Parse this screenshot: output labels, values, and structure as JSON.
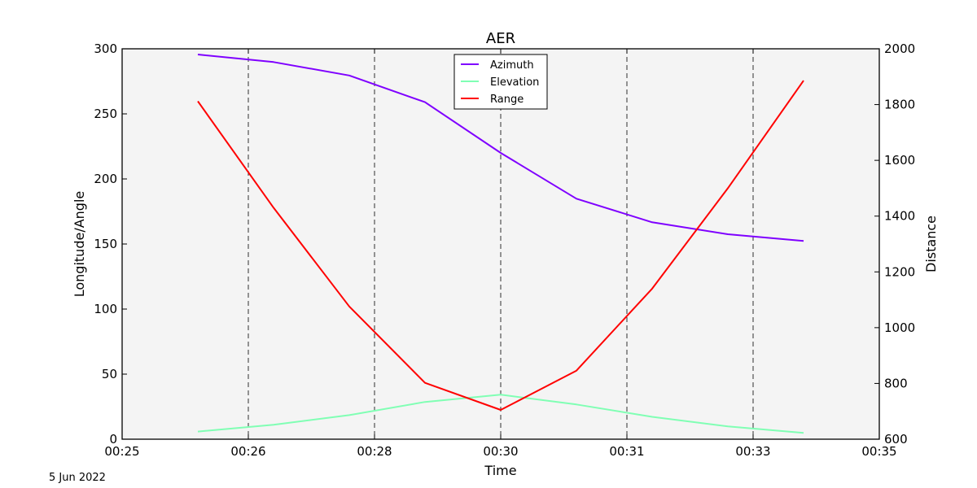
{
  "chart_data": {
    "type": "line",
    "title": "AER",
    "xlabel": "Time",
    "ylabel_left": "Longitude/Angle",
    "ylabel_right": "Distance",
    "date_label": "5 Jun 2022",
    "x_tick_labels": [
      "00:25",
      "00:26",
      "00:28",
      "00:30",
      "00:31",
      "00:33",
      "00:35"
    ],
    "x_ticks_at": [
      0,
      1,
      2,
      3,
      4,
      5,
      6
    ],
    "xlim": [
      0,
      6
    ],
    "ylim_left": [
      0,
      300
    ],
    "ylim_right": [
      600,
      2000
    ],
    "y_ticks_left": [
      0,
      50,
      100,
      150,
      200,
      250,
      300
    ],
    "y_ticks_right": [
      600,
      800,
      1000,
      1200,
      1400,
      1600,
      1800,
      2000
    ],
    "vertical_gridlines": [
      1,
      2,
      3,
      4,
      5
    ],
    "legend_position": "top-center",
    "x_values": [
      0.6,
      1.2,
      1.8,
      2.4,
      3.0,
      3.6,
      4.2,
      4.8,
      5.4
    ],
    "series": [
      {
        "name": "Azimuth",
        "axis": "left",
        "color": "#7f00ff",
        "values": [
          295.6,
          289.8,
          279.5,
          259.0,
          220.0,
          184.8,
          166.7,
          157.5,
          152.4
        ]
      },
      {
        "name": "Elevation",
        "axis": "left",
        "color": "#80ffb4",
        "values": [
          5.9,
          11.1,
          18.5,
          28.6,
          34.2,
          26.7,
          17.2,
          9.9,
          4.8
        ]
      },
      {
        "name": "Range",
        "axis": "right",
        "color": "#ff0000",
        "values": [
          1812,
          1430,
          1076,
          802,
          705,
          846,
          1140,
          1500,
          1886
        ]
      }
    ]
  }
}
